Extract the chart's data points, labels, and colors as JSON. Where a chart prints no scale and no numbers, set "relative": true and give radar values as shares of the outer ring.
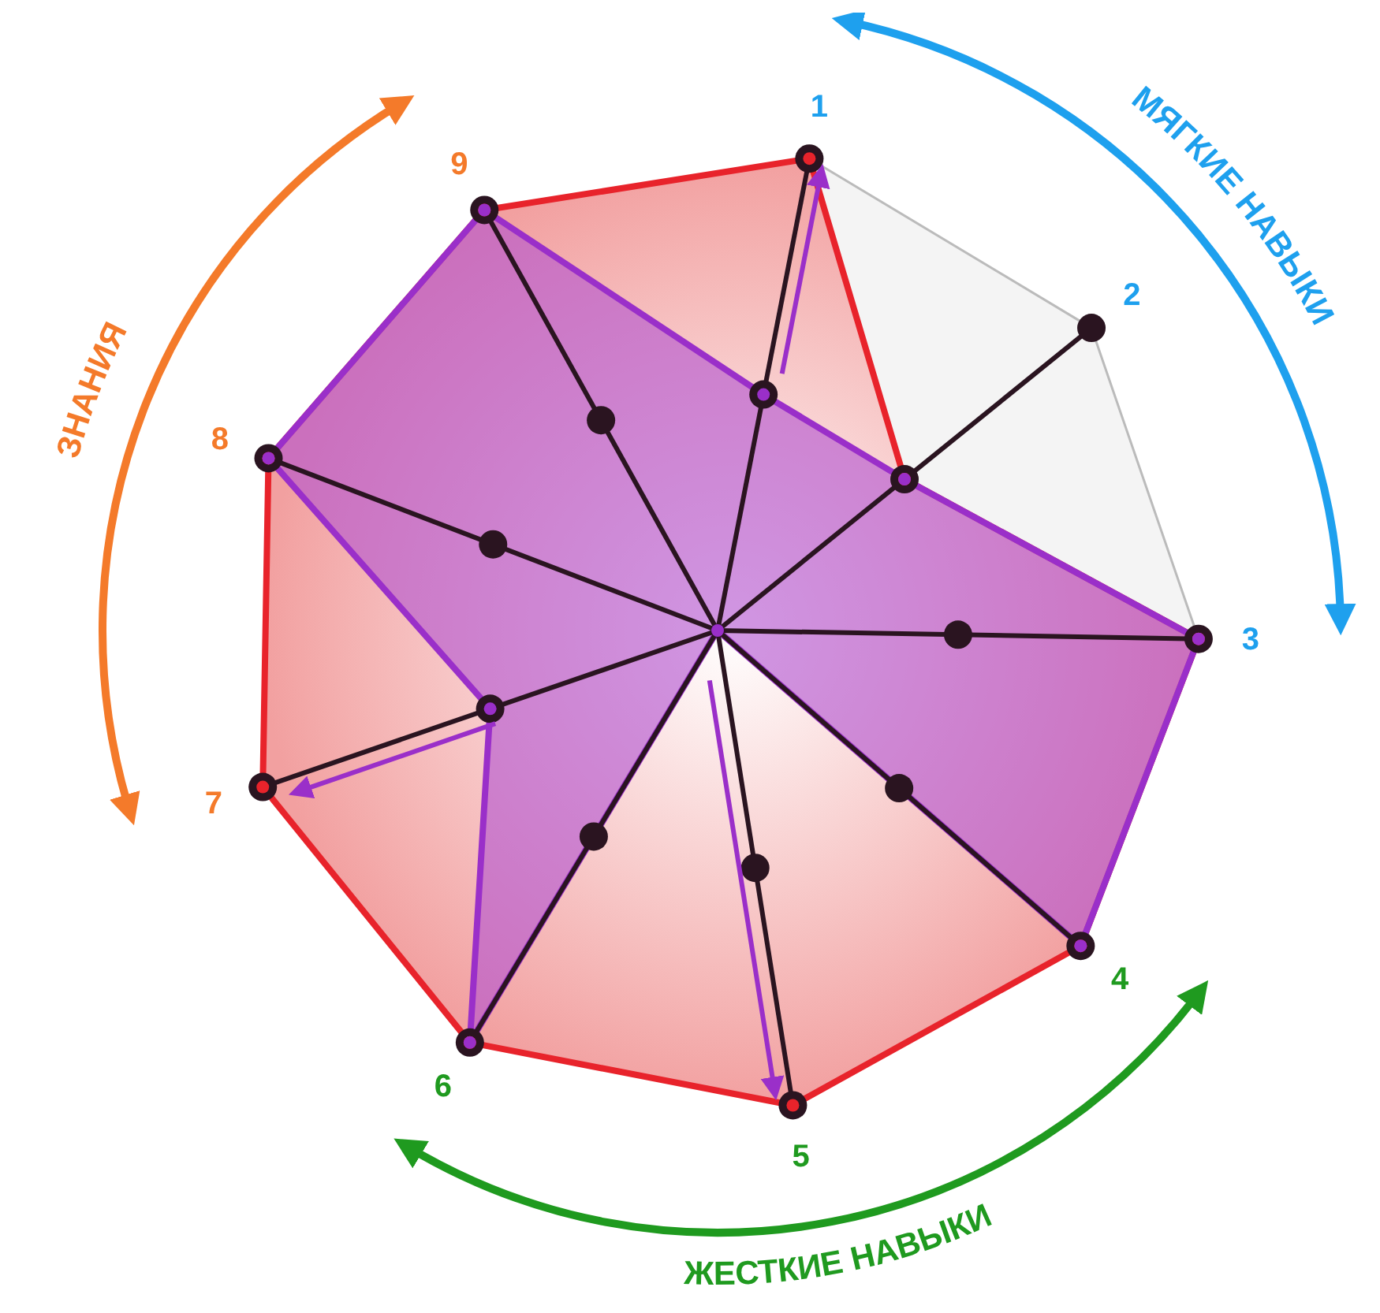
{
  "chart_data": {
    "type": "radar",
    "relative": true,
    "grid": true,
    "marker": "circle",
    "categories": [
      "1",
      "2",
      "3",
      "4",
      "5",
      "6",
      "7",
      "8",
      "9"
    ],
    "series": [
      {
        "color": "#e8232b",
        "values": [
          1,
          0.5,
          1,
          1,
          1,
          1,
          1,
          1,
          1
        ]
      },
      {
        "color": "#9a2fc9",
        "values": [
          0.5,
          0.5,
          1,
          1,
          0,
          1,
          0.5,
          1,
          1
        ]
      }
    ],
    "annotations": [
      "МЯГКИЕ НАВЫКИ",
      "ЖЕСТКИЕ НАВЫКИ",
      "ЗНАНИЯ"
    ]
  }
}
